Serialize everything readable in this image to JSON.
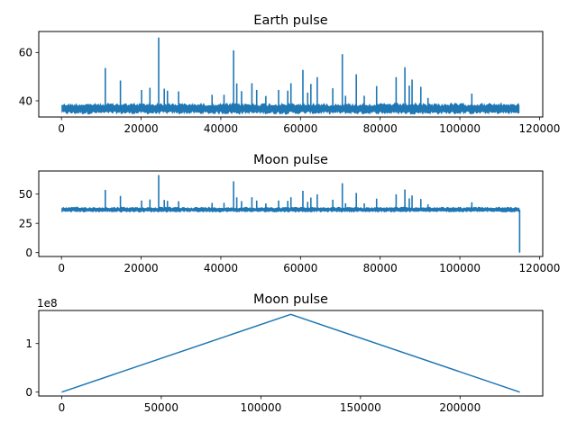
{
  "chart_data": [
    {
      "type": "line",
      "title": "Earth pulse",
      "xlim": [
        -5700,
        120800
      ],
      "ylim": [
        33.3,
        68.7
      ],
      "xticks": [
        0,
        20000,
        40000,
        60000,
        80000,
        100000,
        120000
      ],
      "xtick_labels": [
        "0",
        "20000",
        "40000",
        "60000",
        "80000",
        "100000",
        "120000"
      ],
      "yticks": [
        40,
        60
      ],
      "ytick_labels": [
        "40",
        "60"
      ],
      "offset_label": "",
      "series": [
        {
          "baseline": 36.7,
          "band_range": [
            34.3,
            39.2
          ],
          "x_range": [
            0,
            115000
          ],
          "spikes": [
            [
              11000,
              53.6
            ],
            [
              14800,
              48.4
            ],
            [
              20100,
              44.5
            ],
            [
              22200,
              45.4
            ],
            [
              24400,
              66.2
            ],
            [
              25800,
              45.0
            ],
            [
              26600,
              44.2
            ],
            [
              29400,
              43.9
            ],
            [
              37800,
              42.5
            ],
            [
              40800,
              42.5
            ],
            [
              43200,
              60.9
            ],
            [
              44000,
              47.2
            ],
            [
              45200,
              44.0
            ],
            [
              47800,
              47.3
            ],
            [
              49000,
              44.5
            ],
            [
              51300,
              42.0
            ],
            [
              54500,
              44.5
            ],
            [
              56800,
              44.2
            ],
            [
              57600,
              47.3
            ],
            [
              60600,
              52.8
            ],
            [
              61800,
              43.4
            ],
            [
              62600,
              47.0
            ],
            [
              64200,
              49.8
            ],
            [
              68100,
              45.2
            ],
            [
              70500,
              59.3
            ],
            [
              71300,
              42.1
            ],
            [
              74000,
              51.0
            ],
            [
              76000,
              42.1
            ],
            [
              79100,
              46.1
            ],
            [
              84000,
              49.8
            ],
            [
              86200,
              53.9
            ],
            [
              87300,
              46.3
            ],
            [
              88000,
              48.8
            ],
            [
              90200,
              45.8
            ],
            [
              92000,
              41.2
            ],
            [
              103000,
              43.0
            ]
          ]
        }
      ]
    },
    {
      "type": "line",
      "title": "Moon pulse",
      "xlim": [
        -5700,
        120800
      ],
      "ylim": [
        -3.3,
        69.7
      ],
      "xticks": [
        0,
        20000,
        40000,
        60000,
        80000,
        100000,
        120000
      ],
      "xtick_labels": [
        "0",
        "20000",
        "40000",
        "60000",
        "80000",
        "100000",
        "120000"
      ],
      "yticks": [
        0,
        25,
        50
      ],
      "ytick_labels": [
        "0",
        "25",
        "50"
      ],
      "offset_label": "",
      "series": [
        {
          "baseline": 36.7,
          "band_range": [
            34.3,
            39.2
          ],
          "x_range": [
            0,
            115000
          ],
          "drop_to_zero_at": 115000,
          "spikes": [
            [
              11000,
              53.6
            ],
            [
              14800,
              48.4
            ],
            [
              20100,
              44.5
            ],
            [
              22200,
              45.4
            ],
            [
              24400,
              66.2
            ],
            [
              25800,
              45.0
            ],
            [
              26600,
              44.2
            ],
            [
              29400,
              43.9
            ],
            [
              37800,
              42.5
            ],
            [
              40800,
              42.5
            ],
            [
              43200,
              60.9
            ],
            [
              44000,
              47.2
            ],
            [
              45200,
              44.0
            ],
            [
              47800,
              47.3
            ],
            [
              49000,
              44.5
            ],
            [
              51300,
              42.0
            ],
            [
              54500,
              44.5
            ],
            [
              56800,
              44.2
            ],
            [
              57600,
              47.3
            ],
            [
              60600,
              52.8
            ],
            [
              61800,
              43.4
            ],
            [
              62600,
              47.0
            ],
            [
              64200,
              49.8
            ],
            [
              68100,
              45.2
            ],
            [
              70500,
              59.3
            ],
            [
              71300,
              42.1
            ],
            [
              74000,
              51.0
            ],
            [
              76000,
              42.1
            ],
            [
              79100,
              46.1
            ],
            [
              84000,
              49.8
            ],
            [
              86200,
              53.9
            ],
            [
              87300,
              46.3
            ],
            [
              88000,
              48.8
            ],
            [
              90200,
              45.8
            ],
            [
              92000,
              41.2
            ],
            [
              103000,
              43.0
            ]
          ]
        }
      ]
    },
    {
      "type": "line",
      "title": "Moon pulse",
      "xlim": [
        -11500,
        241500
      ],
      "ylim": [
        -0.08,
        1.68
      ],
      "xticks": [
        0,
        50000,
        100000,
        150000,
        200000
      ],
      "xtick_labels": [
        "0",
        "50000",
        "100000",
        "150000",
        "200000"
      ],
      "yticks": [
        0,
        1
      ],
      "ytick_labels": [
        "0",
        "1"
      ],
      "offset_label": "1e8",
      "series": [
        {
          "x": [
            0,
            115000,
            230000
          ],
          "y": [
            0,
            1.6,
            0
          ]
        }
      ]
    }
  ]
}
